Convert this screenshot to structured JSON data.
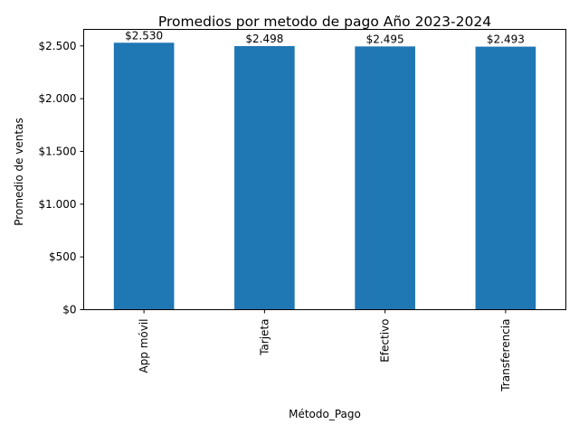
{
  "chart_data": {
    "type": "bar",
    "title": "Promedios por metodo de pago Año 2023-2024",
    "xlabel": "Método_Pago",
    "ylabel": "Promedio de ventas",
    "categories": [
      "App móvil",
      "Tarjeta",
      "Efectivo",
      "Transferencia"
    ],
    "values": [
      2530,
      2498,
      2495,
      2493
    ],
    "value_labels": [
      "$2.530",
      "$2.498",
      "$2.495",
      "$2.493"
    ],
    "ylim": [
      0,
      2656.5
    ],
    "yticks": [
      0,
      500,
      1000,
      1500,
      2000,
      2500
    ],
    "ytick_labels": [
      "$0",
      "$500",
      "$1.000",
      "$1.500",
      "$2.000",
      "$2.500"
    ],
    "bar_color": "#1f77b4",
    "grid": false,
    "legend": "none"
  }
}
